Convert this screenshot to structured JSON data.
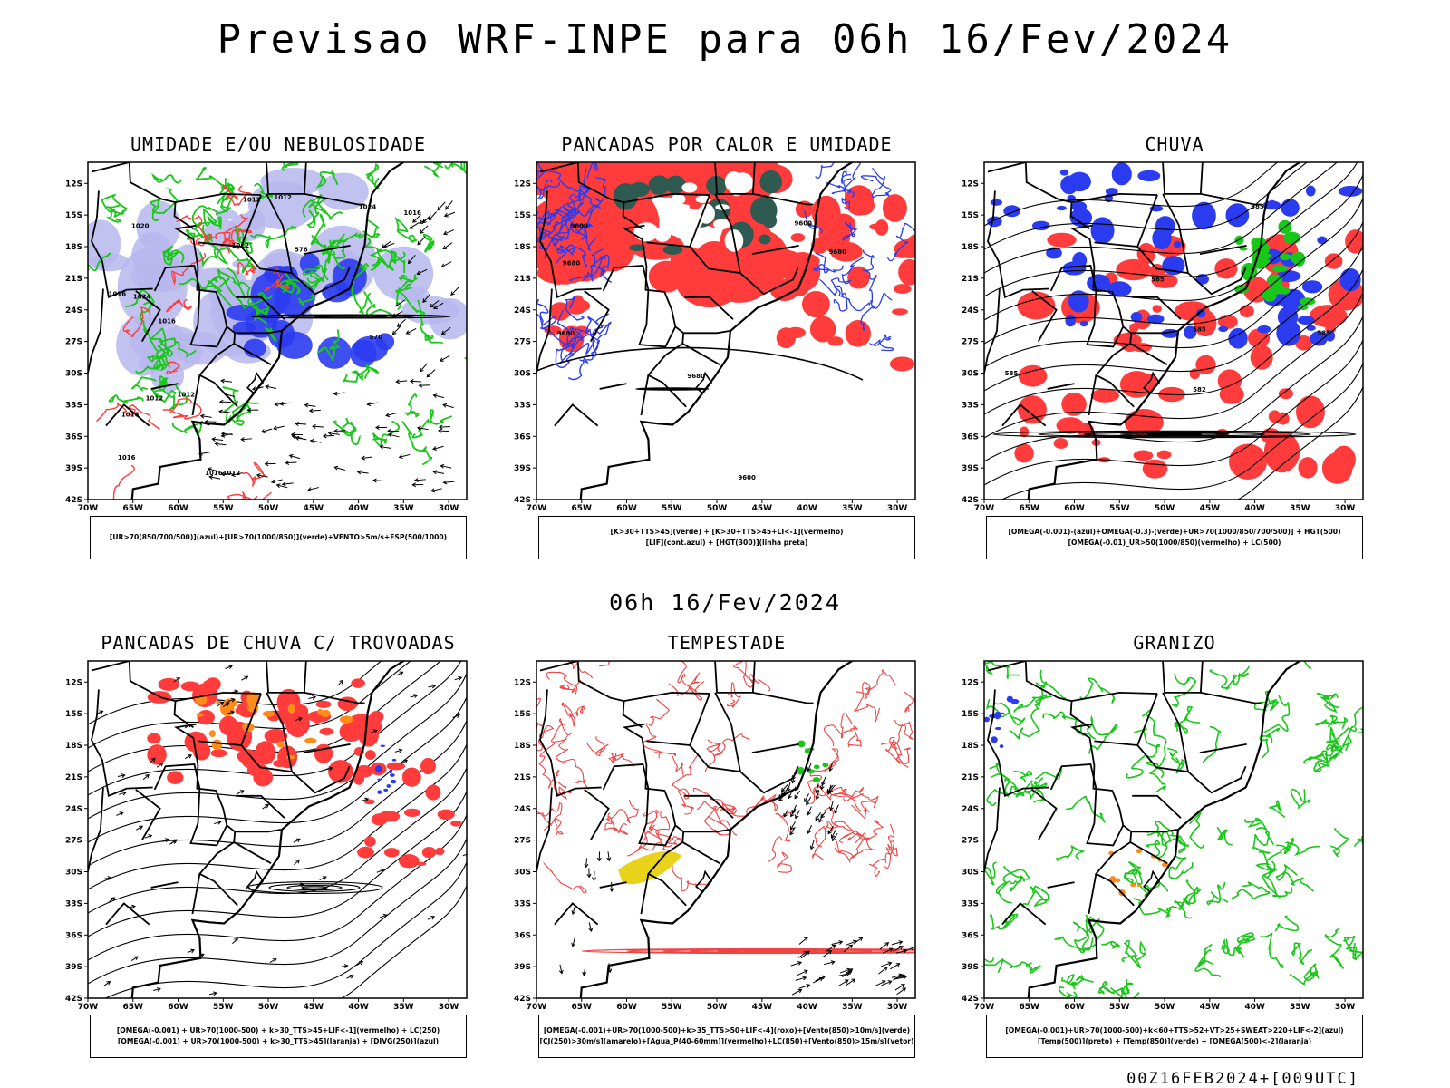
{
  "header": {
    "title": "Previsao WRF-INPE  para 06h 16/Fev/2024"
  },
  "mid_label": "06h 16/Fev/2024",
  "footer": "00Z16FEB2024+[009UTC]",
  "axes": {
    "lat_ticks": [
      "12S",
      "15S",
      "18S",
      "21S",
      "24S",
      "27S",
      "30S",
      "33S",
      "36S",
      "39S",
      "42S"
    ],
    "lon_ticks": [
      "70W",
      "65W",
      "60W",
      "55W",
      "50W",
      "45W",
      "40W",
      "35W",
      "30W"
    ]
  },
  "colors": {
    "red": "#ff3b3b",
    "green": "#18c718",
    "blue": "#2b3cf0",
    "lavender": "#b7b7ee",
    "darkteal": "#2f5a52",
    "orange": "#ff8c1a",
    "yellow": "#e8d21a",
    "black": "#000000"
  },
  "panels": [
    {
      "title": "UMIDADE E/OU NEBULOSIDADE",
      "legend": [
        "[UR>70(850/700/500)](azul)+[UR>70(1000/850)](verde)+VENTO>5m/s+ESP(500/1000)"
      ],
      "labels": [
        "1016",
        "1016",
        "1012",
        "1012",
        "1012",
        "1016",
        "1016",
        "1012",
        "1016",
        "1020",
        "1024",
        "1024",
        "576",
        "570",
        "1012",
        "1016",
        "1012"
      ]
    },
    {
      "title": "PANCADAS POR CALOR E UMIDADE",
      "legend": [
        "[K>30+TTS>45](verde) + [K>30+TTS>45+LI<-1](vermelho)",
        "[LIF](cont.azul) + [HGT(300)](linha preta)"
      ],
      "labels": [
        "9680",
        "9680",
        "9680",
        "9680",
        "9600",
        "9600",
        "9600"
      ]
    },
    {
      "title": "CHUVA",
      "legend": [
        "[OMEGA(-0.001)-(azul)+OMEGA(-0.3)-(verde)+UR>70(1000/850/700/500)] + HGT(500)",
        "[OMEGA(-0.01)_UR>50(1000/850)(vermelho) + LC(500)"
      ],
      "labels": [
        "585",
        "582",
        "585",
        "585",
        "585",
        "585"
      ]
    },
    {
      "title": "PANCADAS DE CHUVA C/ TROVOADAS",
      "legend": [
        "[OMEGA(-0.001) + UR>70(1000-500) + k>30_TTS>45+LIF<-1](vermelho) + LC(250)",
        "[OMEGA(-0.001) + UR>70(1000-500) + k>30_TTS>45](laranja) + [DIVG(250)](azul)"
      ],
      "labels": []
    },
    {
      "title": "TEMPESTADE",
      "legend": [
        "[OMEGA(-0.001)+UR>70(1000-500)+k>35_TTS>50+LIF<-4](roxo)+[Vento(850)>10m/s](verde)",
        "[CJ(250)>30m/s](amarelo)+[Agua_P(40-60mm)](vermelho)+LC(850)+[Vento(850)>15m/s](vetor)"
      ],
      "labels": []
    },
    {
      "title": "GRANIZO",
      "legend": [
        "[OMEGA(-0.001)+UR>70(1000-500)+k<60+TTS>52+VT>25+SWEAT>220+LIF<-2](azul)",
        "[Temp(500)](preto) + [Temp(850)](verde) + [OMEGA(500)<-2](laranja)"
      ],
      "labels": []
    }
  ]
}
